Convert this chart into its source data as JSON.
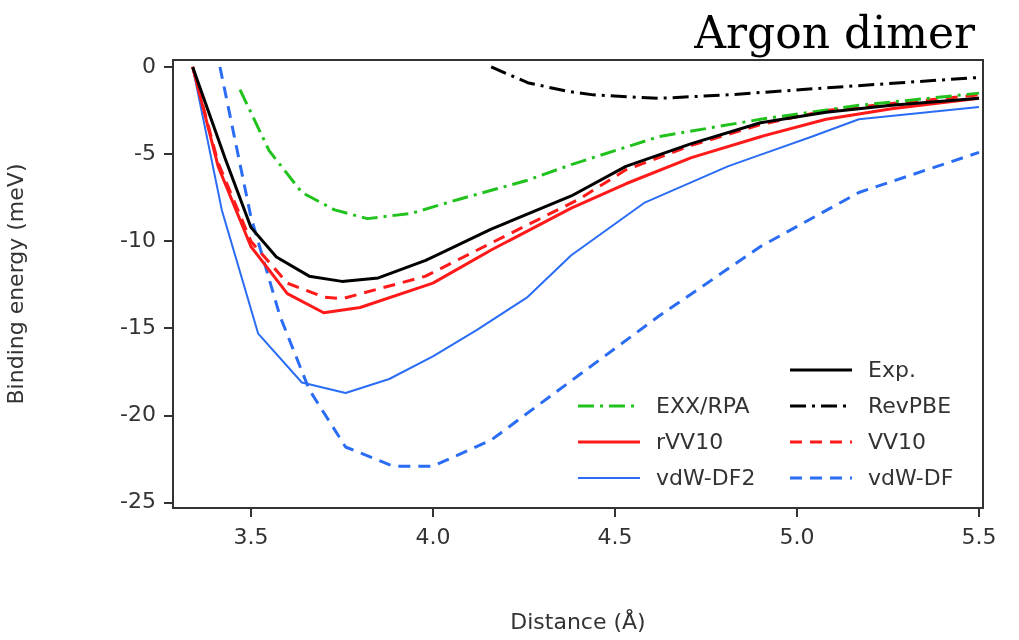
{
  "chart_data": {
    "type": "line",
    "title": "Argon dimer",
    "xlabel": "Distance (Å)",
    "ylabel": "Binding energy (meV)",
    "xlim": [
      3.286,
      5.511
    ],
    "ylim": [
      -25.3,
      0.4
    ],
    "xticks": [
      {
        "value": 3.5,
        "label": "3.5"
      },
      {
        "value": 4,
        "label": "4.0"
      },
      {
        "value": 4.5,
        "label": "4.5"
      },
      {
        "value": 5,
        "label": "5.0"
      },
      {
        "value": 5.5,
        "label": "5.5"
      }
    ],
    "yticks": [
      0,
      -5,
      -10,
      -15,
      -20,
      -25
    ],
    "grid": false,
    "legend": "bottom right",
    "marker": "none",
    "series": [
      {
        "name": "Exp.",
        "color": "#000000",
        "line_style": "solid",
        "x": [
          3.34,
          3.43,
          3.5,
          3.57,
          3.66,
          3.75,
          3.85,
          3.98,
          4.16,
          4.38,
          4.53,
          4.71,
          4.9,
          5.08,
          5.26,
          5.5
        ],
        "values": [
          0,
          -5.3,
          -9.2,
          -10.9,
          -12,
          -12.3,
          -12.1,
          -11.1,
          -9.3,
          -7.4,
          -5.7,
          -4.4,
          -3.2,
          -2.6,
          -2.2,
          -1.8
        ]
      },
      {
        "name": "EXX/RPA",
        "color": "#22c21e",
        "line_style": "dashdot",
        "x": [
          3.47,
          3.55,
          3.64,
          3.73,
          3.82,
          3.94,
          4.07,
          4.26,
          4.38,
          4.62,
          4.9,
          5.17,
          5.5
        ],
        "values": [
          -1.3,
          -4.8,
          -7.2,
          -8.2,
          -8.7,
          -8.4,
          -7.6,
          -6.5,
          -5.6,
          -4,
          -3,
          -2.2,
          -1.5
        ]
      },
      {
        "name": "RevPBE",
        "color": "#000000",
        "line_style": "dashdot",
        "x": [
          4.16,
          4.26,
          4.37,
          4.44,
          4.62,
          4.81,
          5.08,
          5.5
        ],
        "values": [
          0,
          -0.9,
          -1.4,
          -1.6,
          -1.8,
          -1.6,
          -1.2,
          -0.6
        ]
      },
      {
        "name": "rVV10",
        "color": "#ff1a1a",
        "line_style": "solid",
        "x": [
          3.34,
          3.41,
          3.5,
          3.6,
          3.7,
          3.8,
          4,
          4.16,
          4.38,
          4.53,
          4.71,
          4.9,
          5.08,
          5.26,
          5.5
        ],
        "values": [
          0,
          -5.7,
          -10.3,
          -13,
          -14.1,
          -13.8,
          -12.4,
          -10.5,
          -8.1,
          -6.7,
          -5.2,
          -4,
          -3,
          -2.4,
          -1.8
        ]
      },
      {
        "name": "VV10",
        "color": "#ff1a1a",
        "line_style": "dashed",
        "x": [
          3.34,
          3.41,
          3.5,
          3.6,
          3.7,
          3.75,
          3.98,
          4.16,
          4.4,
          4.53,
          4.71,
          4.9,
          5.08,
          5.26,
          5.5
        ],
        "values": [
          0,
          -5.5,
          -10,
          -12.4,
          -13.2,
          -13.3,
          -12,
          -10.1,
          -7.6,
          -5.9,
          -4.5,
          -3.3,
          -2.5,
          -2.1,
          -1.6
        ]
      },
      {
        "name": "vdW-DF2",
        "color": "#2a6df4",
        "line_style": "solid",
        "x": [
          3.34,
          3.42,
          3.52,
          3.64,
          3.76,
          3.88,
          4,
          4.12,
          4.26,
          4.38,
          4.58,
          4.81,
          5.04,
          5.17,
          5.5
        ],
        "values": [
          0,
          -8.2,
          -15.3,
          -18.1,
          -18.7,
          -17.9,
          -16.6,
          -15.1,
          -13.2,
          -10.8,
          -7.8,
          -5.7,
          -4,
          -3,
          -2.3
        ]
      },
      {
        "name": "vdW-DF",
        "color": "#2a6df4",
        "line_style": "dashed",
        "x": [
          3.415,
          3.5,
          3.58,
          3.66,
          3.76,
          3.89,
          4,
          4.16,
          4.38,
          4.62,
          4.9,
          5.17,
          5.5
        ],
        "values": [
          0,
          -8.6,
          -14.3,
          -18.5,
          -21.8,
          -22.9,
          -22.9,
          -21.4,
          -18,
          -14.3,
          -10.3,
          -7.2,
          -4.9
        ]
      }
    ]
  }
}
